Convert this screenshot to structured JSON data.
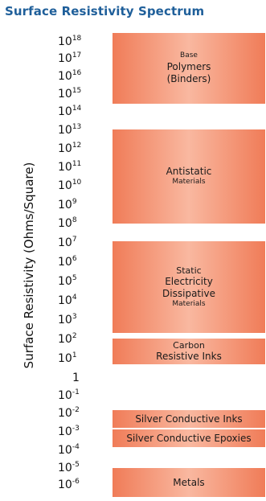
{
  "title": "Surface Resistivity Spectrum",
  "axis_label": "Surface Resistivity  (Ohms/Square)",
  "ticks": [
    {
      "base": "10",
      "exp": "18"
    },
    {
      "base": "10",
      "exp": "17"
    },
    {
      "base": "10",
      "exp": "16"
    },
    {
      "base": "10",
      "exp": "15"
    },
    {
      "base": "10",
      "exp": "14"
    },
    {
      "base": "10",
      "exp": "13"
    },
    {
      "base": "10",
      "exp": "12"
    },
    {
      "base": "10",
      "exp": "11"
    },
    {
      "base": "10",
      "exp": "10"
    },
    {
      "base": "10",
      "exp": "9"
    },
    {
      "base": "10",
      "exp": "8"
    },
    {
      "base": "10",
      "exp": "7"
    },
    {
      "base": "10",
      "exp": "6"
    },
    {
      "base": "10",
      "exp": "5"
    },
    {
      "base": "10",
      "exp": "4"
    },
    {
      "base": "10",
      "exp": "3"
    },
    {
      "base": "10",
      "exp": "2"
    },
    {
      "base": "10",
      "exp": "1"
    },
    {
      "base": "1",
      "exp": ""
    },
    {
      "base": "10",
      "exp": "-1"
    },
    {
      "base": "10",
      "exp": "-2"
    },
    {
      "base": "10",
      "exp": "-3"
    },
    {
      "base": "10",
      "exp": "-4"
    },
    {
      "base": "10",
      "exp": "-5"
    },
    {
      "base": "10",
      "exp": "-6"
    }
  ],
  "bands": [
    {
      "name": "base-polymers",
      "lines": [
        "Base",
        "Polymers",
        "(Binders)"
      ]
    },
    {
      "name": "antistatic-materials",
      "lines": [
        "Antistatic",
        "Materials"
      ]
    },
    {
      "name": "static-dissipative-materials",
      "lines": [
        "Static",
        "Electricity",
        "Dissipative",
        "Materials"
      ]
    },
    {
      "name": "carbon-resistive-inks",
      "lines": [
        "Carbon",
        "Resistive Inks"
      ]
    },
    {
      "name": "silver-conductive-inks",
      "lines": [
        "Silver Conductive Inks"
      ]
    },
    {
      "name": "silver-conductive-epoxies",
      "lines": [
        "Silver Conductive Epoxies"
      ]
    },
    {
      "name": "metals",
      "lines": [
        "Metals"
      ]
    }
  ],
  "colors": {
    "title": "#1f5f9a",
    "band": "#f07c58",
    "band_light": "#f9b8a0"
  }
}
